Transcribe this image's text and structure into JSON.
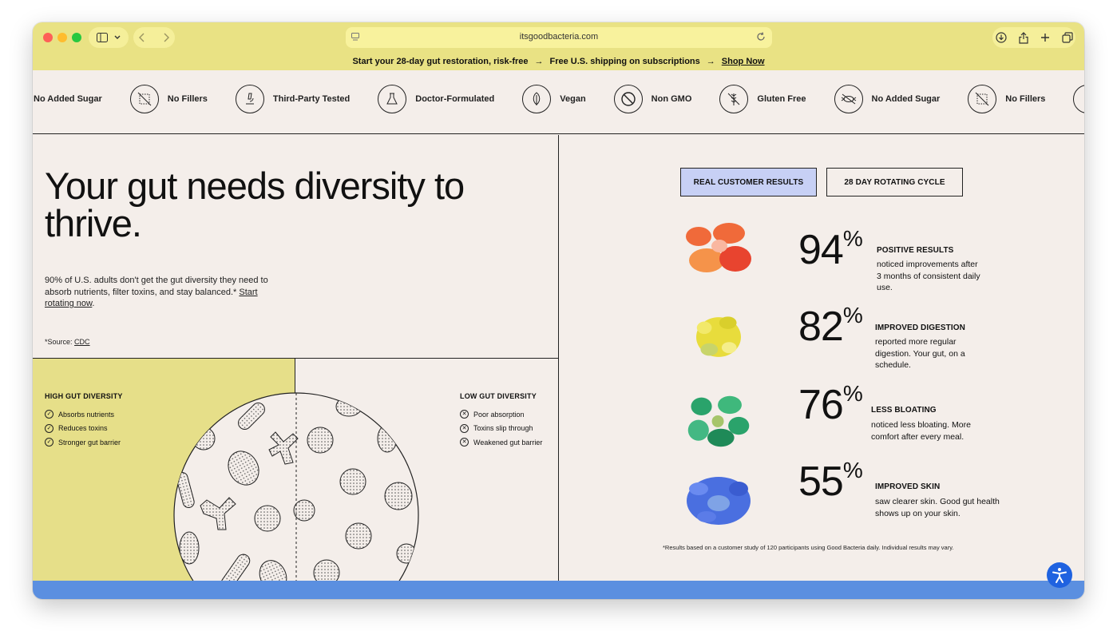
{
  "browser": {
    "url": "itsgoodbacteria.com"
  },
  "announcement": {
    "message": "Start your 28-day gut restoration, risk-free",
    "arrow": "→",
    "shipping": "Free U.S. shipping on subscriptions",
    "cta": "Shop Now"
  },
  "badges": [
    {
      "label": "No Added Sugar",
      "icon": "no-sugar-icon"
    },
    {
      "label": "No Fillers",
      "icon": "no-fillers-icon"
    },
    {
      "label": "Third-Party Tested",
      "icon": "microscope-icon"
    },
    {
      "label": "Doctor-Formulated",
      "icon": "flask-icon"
    },
    {
      "label": "Vegan",
      "icon": "leaf-icon"
    },
    {
      "label": "Non GMO",
      "icon": "prohibited-icon"
    },
    {
      "label": "Gluten Free",
      "icon": "wheat-icon"
    },
    {
      "label": "No Added Sugar",
      "icon": "no-sugar-icon"
    },
    {
      "label": "No Fillers",
      "icon": "no-fillers-icon"
    }
  ],
  "hero": {
    "headline": "Your gut needs diversity to thrive.",
    "intro": "90% of U.S. adults don't get the gut diversity they need to absorb nutrients, filter toxins, and stay balanced.*",
    "intro_link": "Start rotating now",
    "source_label": "*Source:",
    "source_link": "CDC"
  },
  "diversity": {
    "high": {
      "title": "HIGH GUT DIVERSITY",
      "items": [
        "Absorbs nutrients",
        "Reduces toxins",
        "Stronger gut barrier"
      ]
    },
    "low": {
      "title": "LOW GUT DIVERSITY",
      "items": [
        "Poor absorption",
        "Toxins slip through",
        "Weakened gut barrier"
      ]
    }
  },
  "results": {
    "tabs": [
      "REAL CUSTOMER RESULTS",
      "28 DAY ROTATING CYCLE"
    ],
    "stats": [
      {
        "value": "94",
        "unit": "%",
        "title": "POSITIVE RESULTS",
        "desc": "noticed improvements after 3 months of consistent daily use.",
        "color": "#f06a3a"
      },
      {
        "value": "82",
        "unit": "%",
        "title": "IMPROVED DIGESTION",
        "desc": "reported more regular digestion. Your gut, on a schedule.",
        "color": "#e8dc3c"
      },
      {
        "value": "76",
        "unit": "%",
        "title": "LESS BLOATING",
        "desc": "noticed less bloating. More comfort after every meal.",
        "color": "#2aa36b"
      },
      {
        "value": "55",
        "unit": "%",
        "title": "IMPROVED SKIN",
        "desc": "saw clearer skin. Good gut health shows up on your skin.",
        "color": "#4a6fe0"
      }
    ],
    "disclaimer": "*Results based on a customer study of 120 participants using Good Bacteria daily. Individual results may vary."
  },
  "colors": {
    "brand_yellow": "#e9e284",
    "background": "#f4eeea",
    "tab_active": "#c7d0f5",
    "accessibility_blue": "#1f62e0"
  }
}
